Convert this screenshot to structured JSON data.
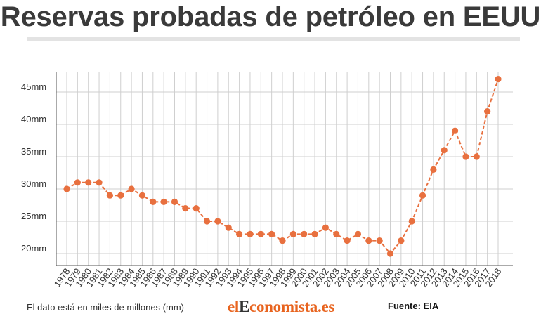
{
  "colors": {
    "line": "#e8703f",
    "grid": "#cfcfcf",
    "axis": "#333333",
    "logo_accent": "#e8641f"
  },
  "chart_data": {
    "type": "line",
    "title": "Reservas probadas de petróleo en EEUU",
    "xlabel": "",
    "ylabel": "",
    "ylim": [
      18,
      48
    ],
    "grid": true,
    "yticks": [
      {
        "value": 20,
        "label": "20mm"
      },
      {
        "value": 25,
        "label": "25mm"
      },
      {
        "value": 30,
        "label": "30mm"
      },
      {
        "value": 35,
        "label": "35mm"
      },
      {
        "value": 40,
        "label": "40mm"
      },
      {
        "value": 45,
        "label": "45mm"
      }
    ],
    "categories": [
      "1978",
      "1979",
      "1980",
      "1981",
      "1982",
      "1983",
      "1984",
      "1985",
      "1986",
      "1987",
      "1988",
      "1989",
      "1990",
      "1991",
      "1992",
      "1993",
      "1994",
      "1995",
      "1996",
      "1997",
      "1998",
      "1999",
      "2000",
      "2001",
      "2002",
      "2003",
      "2004",
      "2005",
      "2006",
      "2007",
      "2008",
      "2009",
      "2010",
      "2011",
      "2012",
      "2013",
      "2014",
      "2015",
      "2016",
      "2017",
      "2018"
    ],
    "values": [
      30,
      31,
      31,
      31,
      29,
      29,
      30,
      29,
      28,
      28,
      28,
      27,
      27,
      25,
      25,
      24,
      23,
      23,
      23,
      23,
      22,
      23,
      23,
      23,
      24,
      23,
      22,
      23,
      22,
      22,
      20,
      22,
      25,
      29,
      33,
      36,
      39,
      35,
      35,
      42,
      47
    ]
  },
  "footer": {
    "note": "El dato está en miles de millones (mm)",
    "logo_prefix": "el",
    "logo_initial": "E",
    "logo_suffix": "conomista.es",
    "source": "Fuente: EIA"
  }
}
